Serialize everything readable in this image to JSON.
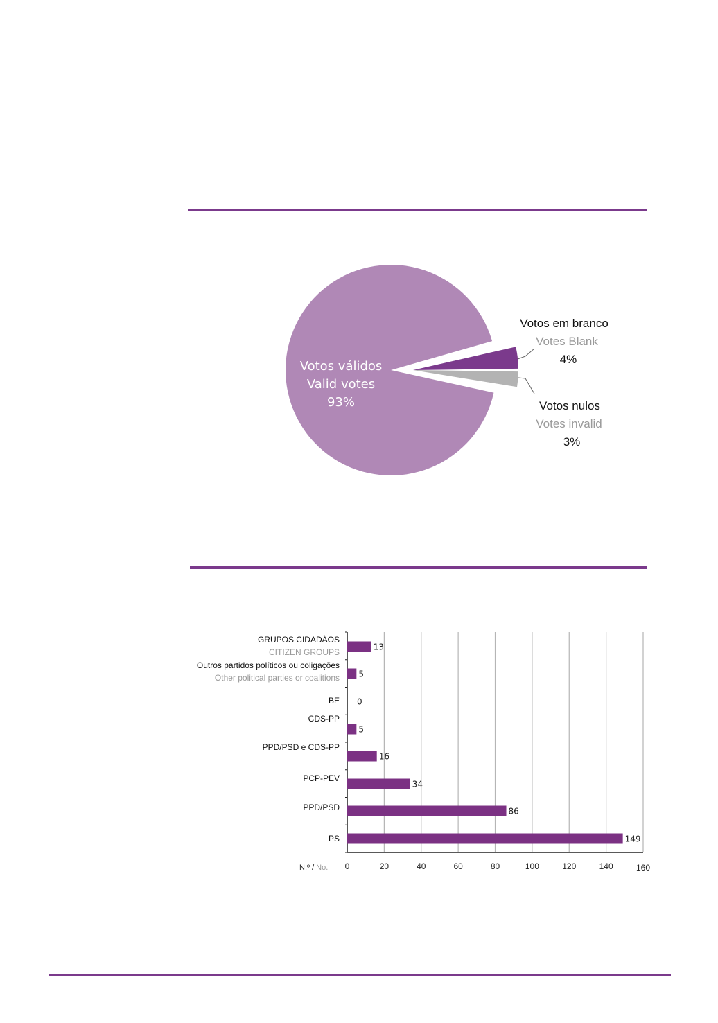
{
  "colors": {
    "accent": "#7b3a8c",
    "pie_valid": "#b088b6",
    "pie_blank": "#7b3a8c",
    "pie_invalid": "#b3b3b3",
    "bar": "#7b3183",
    "grid": "#b5b5b5",
    "secondary_text": "#9a9a9a"
  },
  "chart_data": [
    {
      "type": "pie",
      "title": "",
      "slices": [
        {
          "key": "valid",
          "label_pt": "Votos válidos",
          "label_en": "Valid votes",
          "value": 93,
          "display": "93%"
        },
        {
          "key": "blank",
          "label_pt": "Votos em branco",
          "label_en": "Votes Blank",
          "value": 4,
          "display": "4%"
        },
        {
          "key": "invalid",
          "label_pt": "Votos nulos",
          "label_en": "Votes invalid",
          "value": 3,
          "display": "3%"
        }
      ]
    },
    {
      "type": "bar",
      "orientation": "horizontal",
      "title": "",
      "categories": [
        {
          "label": "GRUPOS CIDADÃOS",
          "label_en": "CITIZEN GROUPS"
        },
        {
          "label": "Outros partidos políticos ou coligações",
          "label_en": "Other political parties or coalitions"
        },
        {
          "label": "BE",
          "label_en": ""
        },
        {
          "label": "CDS-PP",
          "label_en": ""
        },
        {
          "label": "PPD/PSD e CDS-PP",
          "label_en": ""
        },
        {
          "label": "PCP-PEV",
          "label_en": ""
        },
        {
          "label": "PPD/PSD",
          "label_en": ""
        },
        {
          "label": "PS",
          "label_en": ""
        }
      ],
      "values": [
        13,
        5,
        0,
        5,
        16,
        34,
        86,
        149
      ],
      "xlim": [
        0,
        160
      ],
      "xticks": [
        0,
        20,
        40,
        60,
        80,
        100,
        120,
        140,
        160
      ],
      "xlabel_pt": "N.º /",
      "xlabel_en": "No.",
      "grid": true
    }
  ]
}
